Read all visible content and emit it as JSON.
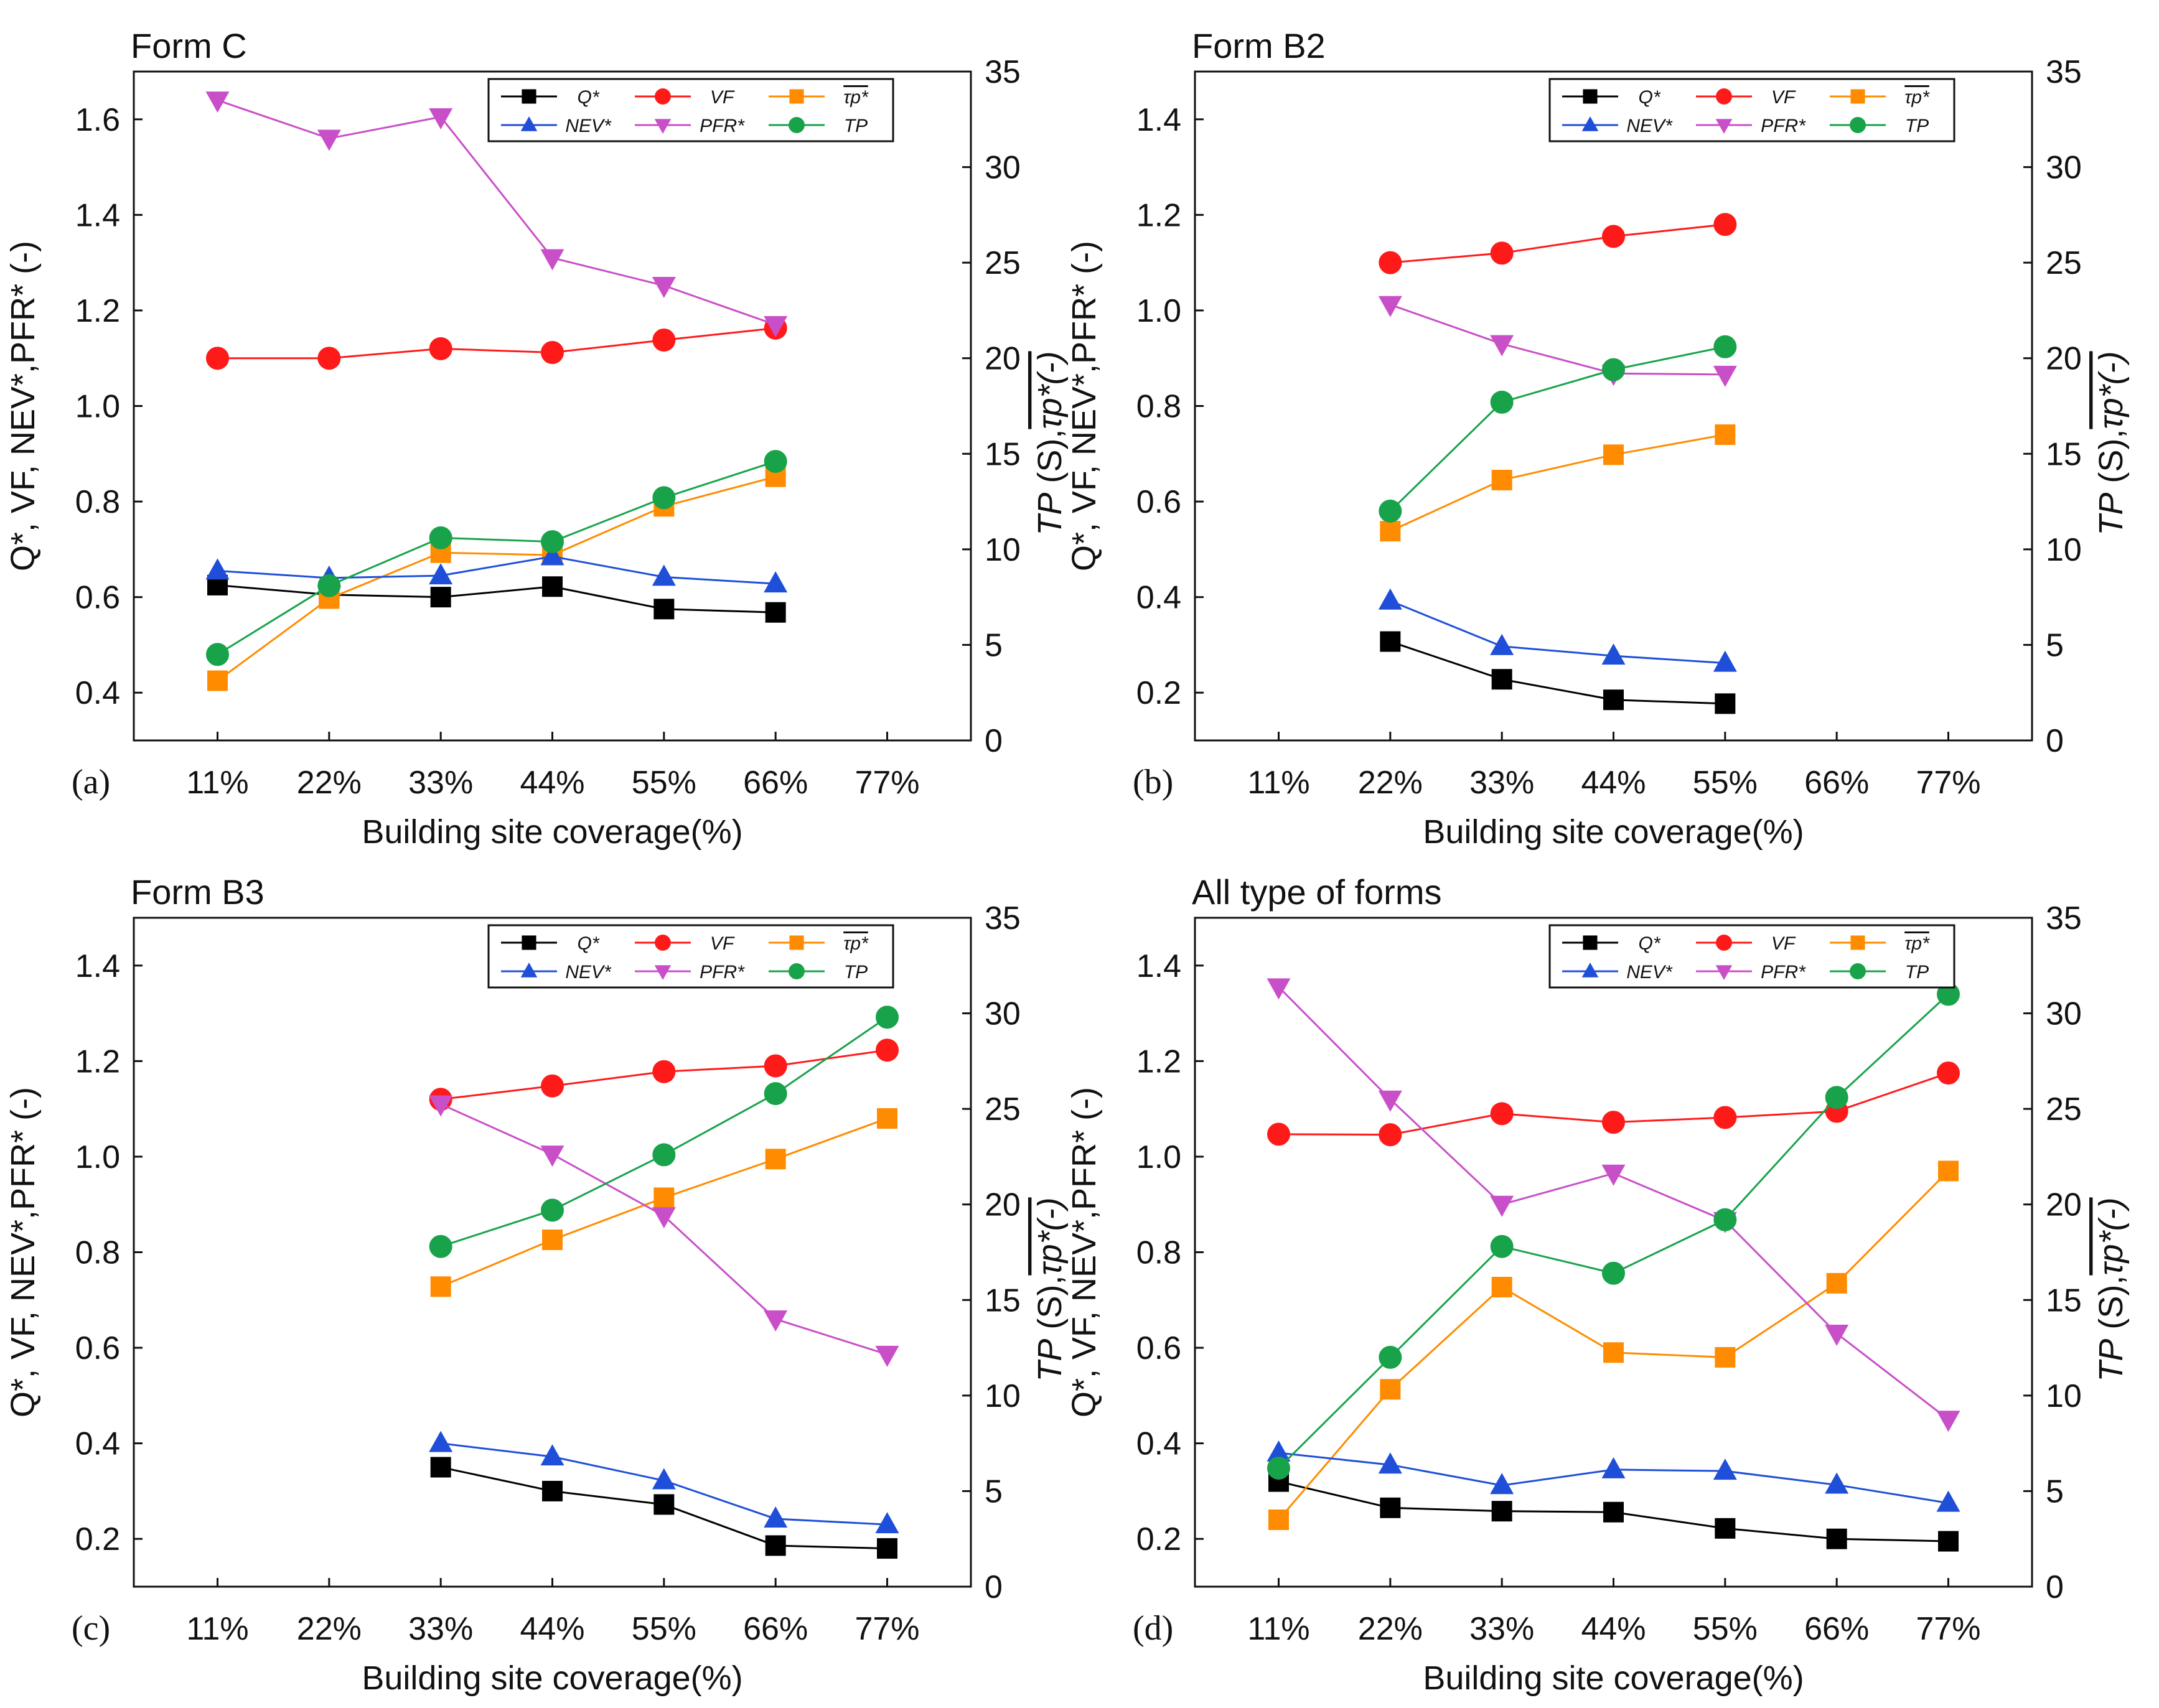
{
  "figure": {
    "series_meta": [
      {
        "key": "Q",
        "legend": "Q*",
        "color": "#000000",
        "marker": "square"
      },
      {
        "key": "VF",
        "legend": "VF",
        "color": "#ff1a1a",
        "marker": "circle"
      },
      {
        "key": "TAU",
        "legend": "τp*",
        "color": "#ff8c00",
        "marker": "square"
      },
      {
        "key": "NEV",
        "legend": "NEV*",
        "color": "#1f4fd8",
        "marker": "triangle-up"
      },
      {
        "key": "PFR",
        "legend": "PFR*",
        "color": "#c94fc9",
        "marker": "triangle-down"
      },
      {
        "key": "TP",
        "legend": "TP",
        "color": "#18a34a",
        "marker": "circle"
      }
    ]
  },
  "chart_data": [
    {
      "type": "line",
      "panel": "(a)",
      "title": "Form C",
      "xlabel": "Building site coverage(%)",
      "ylabel_left": "Q*, VF, NEV*,PFR* (-)",
      "ylabel_right_main": "TP",
      "ylabel_right_rest": " (S),",
      "ylabel_right_tau": "τp*(-)",
      "categories": [
        "11%",
        "22%",
        "33%",
        "44%",
        "55%",
        "66%",
        "77%"
      ],
      "y_left_ticks": [
        "0.4",
        "0.6",
        "0.8",
        "1.0",
        "1.2",
        "1.4",
        "1.6"
      ],
      "y_right_ticks": [
        "0",
        "5",
        "10",
        "15",
        "20",
        "25",
        "30",
        "35"
      ],
      "ylim_left": [
        0.3,
        1.7
      ],
      "ylim_right": [
        0,
        35
      ],
      "series": [
        {
          "name": "Q*",
          "axis": "left",
          "values": [
            0.625,
            0.605,
            0.6,
            0.622,
            0.575,
            0.568,
            null
          ]
        },
        {
          "name": "VF",
          "axis": "left",
          "values": [
            1.1,
            1.1,
            1.12,
            1.112,
            1.138,
            1.163,
            null
          ]
        },
        {
          "name": "τp*",
          "axis": "left",
          "values": [
            0.425,
            0.597,
            0.693,
            0.688,
            0.79,
            0.852,
            null
          ]
        },
        {
          "name": "NEV*",
          "axis": "left",
          "values": [
            0.655,
            0.64,
            0.645,
            0.685,
            0.642,
            0.628,
            null
          ]
        },
        {
          "name": "PFR*",
          "axis": "left",
          "values": [
            1.64,
            1.56,
            1.605,
            1.31,
            1.252,
            1.17,
            null
          ]
        },
        {
          "name": "TP",
          "axis": "right",
          "values": [
            4.5,
            8.1,
            10.6,
            10.4,
            12.7,
            14.6,
            null
          ]
        }
      ]
    },
    {
      "type": "line",
      "panel": "(b)",
      "title": "Form B2",
      "xlabel": "Building site coverage(%)",
      "ylabel_left": "Q*, VF, NEV*,PFR* (-)",
      "ylabel_right_main": "TP",
      "ylabel_right_rest": " (S),",
      "ylabel_right_tau": "τp*(-)",
      "categories": [
        "11%",
        "22%",
        "33%",
        "44%",
        "55%",
        "66%",
        "77%"
      ],
      "y_left_ticks": [
        "0.2",
        "0.4",
        "0.6",
        "0.8",
        "1.0",
        "1.2",
        "1.4"
      ],
      "y_right_ticks": [
        "0",
        "5",
        "10",
        "15",
        "20",
        "25",
        "30",
        "35"
      ],
      "ylim_left": [
        0.1,
        1.5
      ],
      "ylim_right": [
        0,
        35
      ],
      "series": [
        {
          "name": "Q*",
          "axis": "left",
          "values": [
            null,
            0.307,
            0.228,
            0.185,
            0.177,
            null,
            null
          ]
        },
        {
          "name": "VF",
          "axis": "left",
          "values": [
            null,
            1.1,
            1.12,
            1.155,
            1.18,
            null,
            null
          ]
        },
        {
          "name": "τp*",
          "axis": "left",
          "values": [
            null,
            0.538,
            0.645,
            0.698,
            0.74,
            null,
            null
          ]
        },
        {
          "name": "NEV*",
          "axis": "left",
          "values": [
            null,
            0.392,
            0.297,
            0.277,
            0.262,
            null,
            null
          ]
        },
        {
          "name": "PFR*",
          "axis": "left",
          "values": [
            null,
            1.012,
            0.93,
            0.868,
            0.866,
            null,
            null
          ]
        },
        {
          "name": "TP",
          "axis": "right",
          "values": [
            null,
            12.0,
            17.7,
            19.4,
            20.6,
            null,
            null
          ]
        }
      ]
    },
    {
      "type": "line",
      "panel": "(c)",
      "title": "Form B3",
      "xlabel": "Building site coverage(%)",
      "ylabel_left": "Q*, VF, NEV*,PFR* (-)",
      "ylabel_right_main": "TP",
      "ylabel_right_rest": " (S),",
      "ylabel_right_tau": "τp*(-)",
      "categories": [
        "11%",
        "22%",
        "33%",
        "44%",
        "55%",
        "66%",
        "77%"
      ],
      "y_left_ticks": [
        "0.2",
        "0.4",
        "0.6",
        "0.8",
        "1.0",
        "1.2",
        "1.4"
      ],
      "y_right_ticks": [
        "0",
        "5",
        "10",
        "15",
        "20",
        "25",
        "30",
        "35"
      ],
      "ylim_left": [
        0.1,
        1.5
      ],
      "ylim_right": [
        0,
        35
      ],
      "series": [
        {
          "name": "Q*",
          "axis": "left",
          "values": [
            null,
            null,
            0.35,
            0.3,
            0.272,
            0.186,
            0.18
          ]
        },
        {
          "name": "VF",
          "axis": "left",
          "values": [
            null,
            null,
            1.12,
            1.148,
            1.178,
            1.19,
            1.223
          ]
        },
        {
          "name": "τp*",
          "axis": "left",
          "values": [
            null,
            null,
            0.728,
            0.826,
            0.914,
            0.995,
            1.08
          ]
        },
        {
          "name": "NEV*",
          "axis": "left",
          "values": [
            null,
            null,
            0.4,
            0.372,
            0.322,
            0.242,
            0.23
          ]
        },
        {
          "name": "PFR*",
          "axis": "left",
          "values": [
            null,
            null,
            1.11,
            1.005,
            0.876,
            0.66,
            0.586
          ]
        },
        {
          "name": "TP",
          "axis": "right",
          "values": [
            null,
            null,
            17.8,
            19.7,
            22.6,
            25.8,
            29.8
          ]
        }
      ]
    },
    {
      "type": "line",
      "panel": "(d)",
      "title": "All type of forms",
      "xlabel": "Building site coverage(%)",
      "ylabel_left": "Q*, VF, NEV*,PFR* (-)",
      "ylabel_right_main": "TP",
      "ylabel_right_rest": " (S),",
      "ylabel_right_tau": "τp*(-)",
      "categories": [
        "11%",
        "22%",
        "33%",
        "44%",
        "55%",
        "66%",
        "77%"
      ],
      "y_left_ticks": [
        "0.2",
        "0.4",
        "0.6",
        "0.8",
        "1.0",
        "1.2",
        "1.4"
      ],
      "y_right_ticks": [
        "0",
        "5",
        "10",
        "15",
        "20",
        "25",
        "30",
        "35"
      ],
      "ylim_left": [
        0.1,
        1.5
      ],
      "ylim_right": [
        0,
        35
      ],
      "series": [
        {
          "name": "Q*",
          "axis": "left",
          "values": [
            0.32,
            0.265,
            0.258,
            0.256,
            0.222,
            0.2,
            0.195
          ]
        },
        {
          "name": "VF",
          "axis": "left",
          "values": [
            1.047,
            1.046,
            1.09,
            1.072,
            1.082,
            1.095,
            1.175
          ]
        },
        {
          "name": "τp*",
          "axis": "left",
          "values": [
            0.24,
            0.513,
            0.727,
            0.59,
            0.58,
            0.735,
            0.97
          ]
        },
        {
          "name": "NEV*",
          "axis": "left",
          "values": [
            0.38,
            0.355,
            0.312,
            0.345,
            0.342,
            0.313,
            0.275
          ]
        },
        {
          "name": "PFR*",
          "axis": "left",
          "values": [
            1.355,
            1.12,
            0.9,
            0.965,
            0.866,
            0.63,
            0.45
          ]
        },
        {
          "name": "TP",
          "axis": "right",
          "values": [
            6.2,
            12.0,
            17.8,
            16.4,
            19.2,
            25.6,
            31.0
          ]
        }
      ]
    }
  ]
}
